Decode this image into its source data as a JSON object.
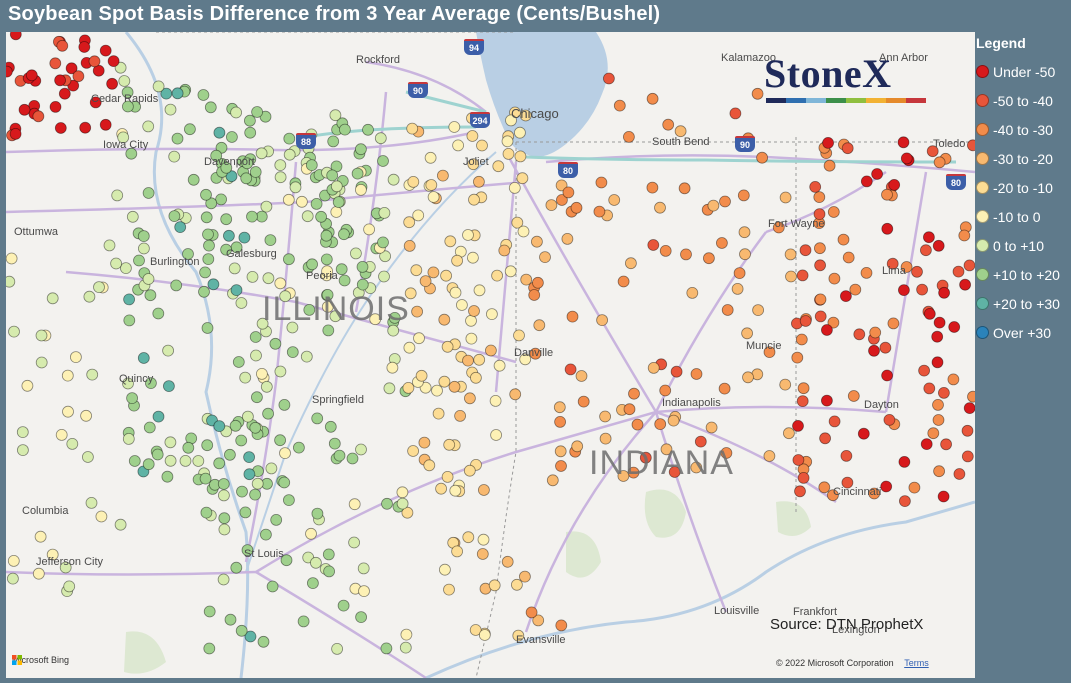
{
  "title": "Soybean Spot Basis Difference from 3 Year Average (Cents/Bushel)",
  "legend": {
    "title": "Legend",
    "items": [
      {
        "label": "Under -50",
        "color": "#d7191c"
      },
      {
        "label": "-50 to -40",
        "color": "#e8553a"
      },
      {
        "label": "-40 to -30",
        "color": "#f28c4b"
      },
      {
        "label": "-30 to -20",
        "color": "#f8b970"
      },
      {
        "label": "-20 to -10",
        "color": "#fcdc94"
      },
      {
        "label": "-10 to 0",
        "color": "#fdf1b5"
      },
      {
        "label": "0 to +10",
        "color": "#d6ebae"
      },
      {
        "label": "+10 to +20",
        "color": "#9fd08c"
      },
      {
        "label": "+20 to +30",
        "color": "#5fb3a5"
      },
      {
        "label": "Over +30",
        "color": "#2b83ba"
      }
    ]
  },
  "map": {
    "states": [
      "ILLINOIS",
      "INDIANA"
    ],
    "cities": [
      "Rockford",
      "Kalamazoo",
      "Ann Arbor",
      "Cedar Rapids",
      "Chicago",
      "Iowa City",
      "Davenport",
      "South Bend",
      "Toledo",
      "Joliet",
      "Ottumwa",
      "Fort Wayne",
      "Galesburg",
      "Burlington",
      "Peoria",
      "Lima",
      "Quincy",
      "Danville",
      "Muncie",
      "Springfield",
      "Indianapolis",
      "Dayton",
      "Columbia",
      "Cincinnati",
      "St Louis",
      "Jefferson City",
      "Louisville",
      "Frankfort",
      "Evansville",
      "Lexington"
    ],
    "highways": [
      "94",
      "90",
      "88",
      "294",
      "80",
      "90",
      "80"
    ]
  },
  "branding": {
    "logo_text": "StoneX",
    "logo_colors": [
      "#1f2a5a",
      "#2f6fb0",
      "#7fb6d8",
      "#3c8f4a",
      "#8fbf3f",
      "#f2b233",
      "#e58a2b",
      "#c6373c"
    ]
  },
  "source": "Source: DTN ProphetX",
  "footer": {
    "bing": "Microsoft Bing",
    "copyright": "© 2022 Microsoft Corporation",
    "terms": "Terms"
  }
}
